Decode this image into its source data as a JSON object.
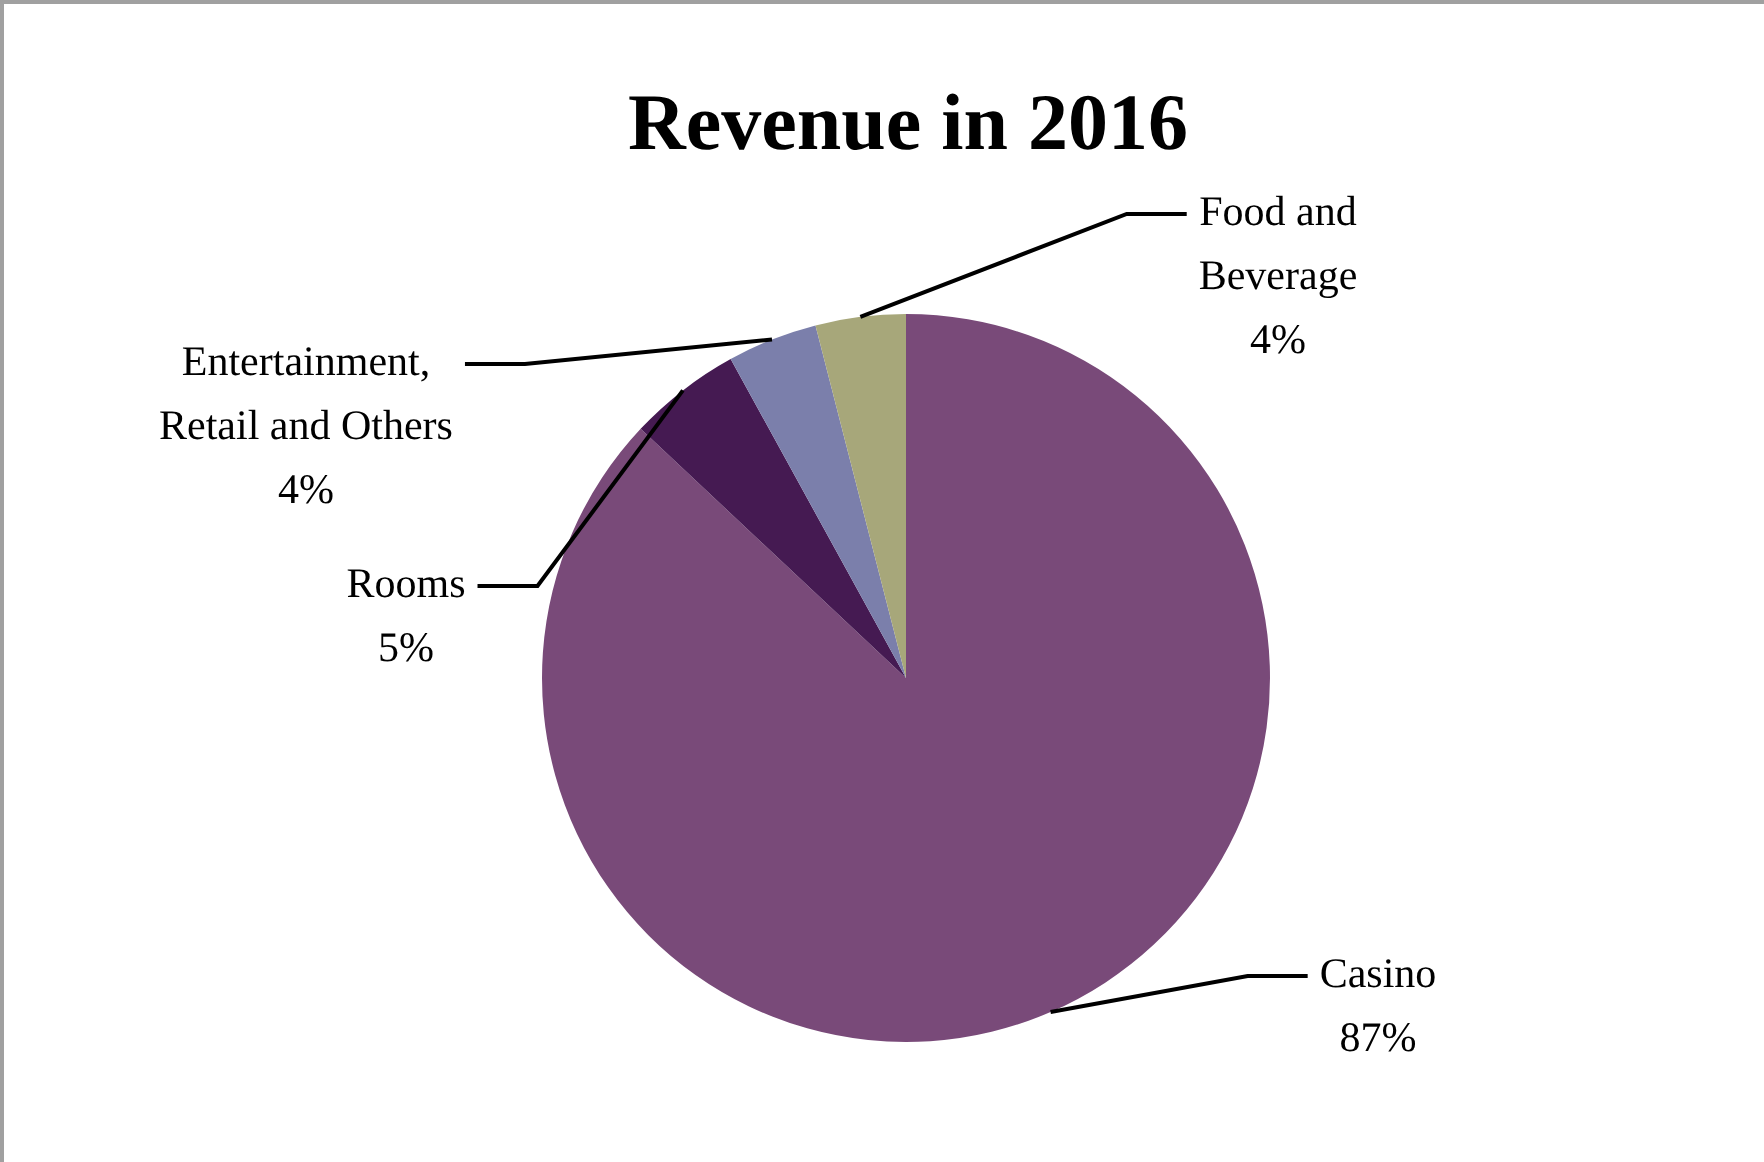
{
  "chart_data": {
    "type": "pie",
    "title": "Revenue in 2016",
    "categories": [
      "Casino",
      "Rooms",
      "Entertainment, Retail and Others",
      "Food and Beverage"
    ],
    "values": [
      87,
      5,
      4,
      4
    ],
    "value_labels": [
      "87%",
      "5%",
      "4%",
      "4%"
    ],
    "colors": [
      "#794a79",
      "#451a52",
      "#7b7fab",
      "#a7a77a"
    ],
    "legend": false
  }
}
